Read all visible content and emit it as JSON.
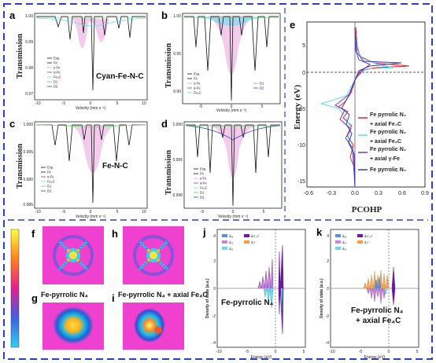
{
  "panels": {
    "a": {
      "label": "a",
      "ylabel": "Transmission",
      "xlabel": "Velocity (mm s⁻¹)",
      "annotation": "Cyan-Fe-N-C",
      "yticks": [
        "1.00",
        "0.99",
        "0.98",
        "0.97"
      ],
      "xticks": [
        "-10",
        "-5",
        "0",
        "5",
        "10"
      ],
      "legend": [
        "Exp.",
        "Fit",
        "γ-Fe",
        "α-Fe",
        "Fe₃C",
        "D1",
        "D2"
      ]
    },
    "b": {
      "label": "b",
      "ylabel": "Transmission",
      "xlabel": "Velocity (mm s⁻¹)",
      "yticks": [
        "1.00",
        "0.95",
        "0.90"
      ],
      "xticks": [
        "-5",
        "0",
        "5"
      ],
      "legend_a": [
        "Exp.",
        "Fit",
        "γ-Fe",
        "α-Fe",
        "Fe₃C"
      ],
      "legend_b": [
        "D1",
        "D2"
      ]
    },
    "c": {
      "label": "c",
      "ylabel": "Transmission",
      "xlabel": "Velocity (mm s⁻¹)",
      "annotation": "Fe-N-C",
      "yticks": [
        "1.000",
        "0.995",
        "0.990",
        "0.985"
      ],
      "xticks": [
        "-10",
        "-5",
        "0",
        "5",
        "10"
      ],
      "legend": [
        "Exp.",
        "Fit",
        "α-Fe",
        "Fe₃C",
        "D1",
        "D2"
      ]
    },
    "d": {
      "label": "d",
      "ylabel": "Transmission",
      "xlabel": "Velocity (mm s⁻¹)",
      "yticks": [
        "1.000",
        "0.995",
        "0.990"
      ],
      "xticks": [
        "-5",
        "0",
        "5"
      ],
      "legend": [
        "Exp.",
        "Fit",
        "γ-Fe",
        "α-Fe",
        "Fe₃C",
        "D1",
        "D2"
      ]
    },
    "e": {
      "label": "e",
      "ylabel": "Energy (eV)",
      "xlabel": "PCOHP",
      "yticks": [
        "5",
        "0",
        "-5",
        "-10",
        "-15"
      ],
      "xticks": [
        "-0.6",
        "-0.3",
        "0.0",
        "0.3",
        "0.6",
        "0.9"
      ],
      "legend": [
        {
          "l1": "Fe pyrrolic N₄",
          "l2": "+ axial Fe₄C",
          "color": "#e8202a"
        },
        {
          "l1": "Fe pyrrolic N₄",
          "l2": "+ axial Fe₃C",
          "color": "#5fdcf0"
        },
        {
          "l1": "Fe pyrrolic N₄",
          "l2": "+ axial γ-Fe",
          "color": "#8b2fa8"
        },
        {
          "l1": "Fe pyrrolic N₄",
          "l2": "",
          "color": "#2b3fc8"
        }
      ]
    },
    "f": {
      "label": "f"
    },
    "g": {
      "label": "g",
      "caption": "Fe-pyrrolic N₄"
    },
    "h": {
      "label": "h"
    },
    "i": {
      "label": "i",
      "caption": "Fe-pyrrolic N₄ + axial Fe₄C"
    },
    "j": {
      "label": "j",
      "ylabel": "Density of state (a.u.)",
      "xlabel": "Energy (eV)",
      "annotation": "Fe-pyrrolic N₄",
      "yticks": [
        "4",
        "2",
        "0",
        "-2",
        "-4"
      ],
      "xticks": [
        "-10",
        "-5",
        "0",
        "5"
      ],
      "legend": [
        {
          "t": "dₓᵧ",
          "c": "#5b8fd8"
        },
        {
          "t": "dₓ²₋ᵧ²",
          "c": "#6a1b9a"
        },
        {
          "t": "dₓ₂",
          "c": "#c08ad8"
        },
        {
          "t": "d₂²",
          "c": "#f0a050"
        },
        {
          "t": "dᵧ₂",
          "c": "#70d8e8"
        }
      ]
    },
    "k": {
      "label": "k",
      "ylabel": "Density of state (a.u.)",
      "xlabel": "Energy (eV)",
      "annotation_l1": "Fe-pyrrolic N₄",
      "annotation_l2": "+ axial Fe₄C",
      "yticks": [
        "4",
        "2",
        "0",
        "-2",
        "-4"
      ],
      "xticks": [
        "-10",
        "-5",
        "0",
        "5"
      ],
      "legend": [
        {
          "t": "dₓᵧ",
          "c": "#5b8fd8"
        },
        {
          "t": "dₓ²₋ᵧ²",
          "c": "#6a1b9a"
        },
        {
          "t": "dₓ₂",
          "c": "#c08ad8"
        },
        {
          "t": "d₂²",
          "c": "#f0a050"
        },
        {
          "t": "dᵧ₂",
          "c": "#70d8e8"
        }
      ]
    }
  },
  "colors": {
    "border": "#2b3fc8",
    "pink": "#e8a0d8",
    "purple": "#7a3fa0",
    "cyan": "#5fdcf0",
    "green": "#60d060",
    "blue": "#2b3fc8",
    "red": "#e8202a",
    "magenta_bg": "#f040d0"
  }
}
